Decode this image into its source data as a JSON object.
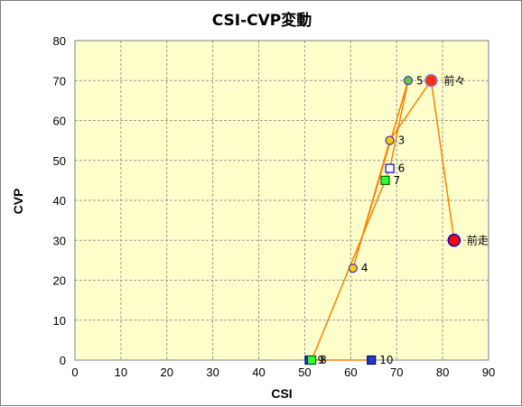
{
  "chart_data": {
    "type": "scatter",
    "title": "CSI-CVP変動",
    "xlabel": "CSI",
    "ylabel": "CVP",
    "xlim": [
      0,
      90
    ],
    "ylim": [
      0,
      80
    ],
    "xticks": [
      0,
      10,
      20,
      30,
      40,
      50,
      60,
      70,
      80,
      90
    ],
    "yticks": [
      0,
      10,
      20,
      30,
      40,
      50,
      60,
      70,
      80
    ],
    "grid": true,
    "plot_background": "#ffffcc",
    "line_color": "#ff8000",
    "series": [
      {
        "points": [
          {
            "label": "前走",
            "x": 82.5,
            "y": 30,
            "marker": "circle-large",
            "fill": "#ff0000",
            "stroke": "#0000cc"
          },
          {
            "label": "前々",
            "x": 77.5,
            "y": 70,
            "marker": "circle-large",
            "fill": "#ff3300",
            "stroke": "#8080ff"
          },
          {
            "label": "3",
            "x": 68.5,
            "y": 55,
            "marker": "circle",
            "fill": "#ffcc00",
            "stroke": "#3333cc"
          },
          {
            "label": "4",
            "x": 60.5,
            "y": 23,
            "marker": "circle",
            "fill": "#ffcc00",
            "stroke": "#3333cc"
          },
          {
            "label": "5",
            "x": 72.5,
            "y": 70,
            "marker": "circle",
            "fill": "#66cc33",
            "stroke": "#3333cc"
          },
          {
            "label": "6",
            "x": 68.5,
            "y": 48,
            "marker": "square",
            "fill": "#ffffff",
            "stroke": "#0000cc"
          },
          {
            "label": "7",
            "x": 67.5,
            "y": 45,
            "marker": "square",
            "fill": "#33ff33",
            "stroke": "#006600"
          },
          {
            "label": "8",
            "x": 51.5,
            "y": 0,
            "marker": "square",
            "fill": "#33ff33",
            "stroke": "#006600"
          },
          {
            "label": "9",
            "x": 51,
            "y": 0,
            "marker": "square",
            "fill": "#1f3fbf",
            "stroke": "#000080"
          },
          {
            "label": "10",
            "x": 64.5,
            "y": 0,
            "marker": "square",
            "fill": "#1f3fbf",
            "stroke": "#000080"
          }
        ]
      }
    ]
  }
}
